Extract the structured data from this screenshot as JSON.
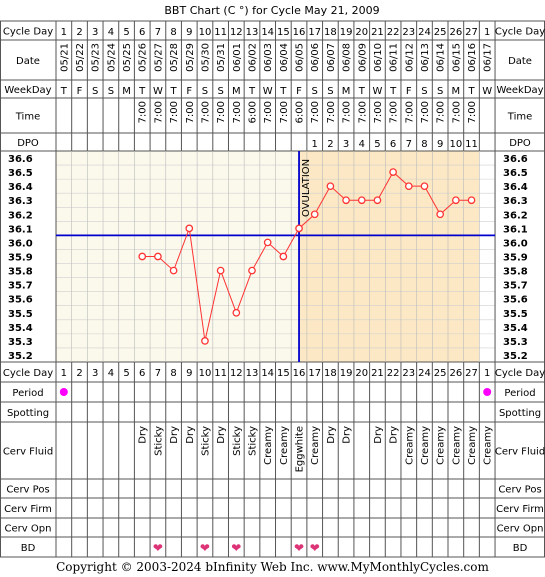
{
  "title": "BBT Chart (C °) for Cycle May 21, 2009",
  "copyright": "Copyright © 2003-2024 bInfinity Web Inc.    www.MyMonthlyCycles.com",
  "row_labels": {
    "cycle_day": "Cycle Day",
    "date": "Date",
    "weekday": "WeekDay",
    "time": "Time",
    "dpo": "DPO",
    "period": "Period",
    "spotting": "Spotting",
    "cerv_fluid": "Cerv Fluid",
    "cerv_pos": "Cerv Pos",
    "cerv_firm": "Cerv Firm",
    "cerv_opn": "Cerv Opn",
    "bd": "BD"
  },
  "colors": {
    "grid_line": "#888888",
    "pre_ovulation_bg": "#fbf8ec",
    "post_ovulation_bg": "#fce8c4",
    "temp_line": "#ff3333",
    "coverline": "#0000cc",
    "ovulation_line": "#0000cc",
    "period_dot": "#ff00ff",
    "bd_heart": "#dd3377"
  },
  "chart_data": {
    "type": "line",
    "title": "BBT Chart (C °) for Cycle May 21, 2009",
    "cycle_days": [
      "1",
      "2",
      "3",
      "4",
      "5",
      "6",
      "7",
      "8",
      "9",
      "10",
      "11",
      "12",
      "13",
      "14",
      "15",
      "16",
      "17",
      "18",
      "19",
      "20",
      "21",
      "22",
      "23",
      "24",
      "25",
      "26",
      "27",
      "1"
    ],
    "dates": [
      "05/21",
      "05/22",
      "05/23",
      "05/24",
      "05/25",
      "05/26",
      "05/27",
      "05/28",
      "05/29",
      "05/30",
      "05/31",
      "06/01",
      "06/02",
      "06/03",
      "06/04",
      "06/05",
      "06/06",
      "06/07",
      "06/08",
      "06/09",
      "06/10",
      "06/11",
      "06/12",
      "06/13",
      "06/14",
      "06/15",
      "06/16",
      "06/17"
    ],
    "weekdays": [
      "T",
      "F",
      "S",
      "S",
      "M",
      "T",
      "W",
      "T",
      "F",
      "S",
      "S",
      "M",
      "T",
      "W",
      "T",
      "F",
      "S",
      "S",
      "M",
      "T",
      "W",
      "T",
      "F",
      "S",
      "S",
      "M",
      "T",
      "W"
    ],
    "times": [
      "",
      "",
      "",
      "",
      "",
      "7:00",
      "7:00",
      "7:00",
      "7:00",
      "7:00",
      "7:00",
      "7:00",
      "6:00",
      "7:00",
      "7:00",
      "6:00",
      "7:00",
      "7:00",
      "7:00",
      "7:00",
      "7:00",
      "7:00",
      "7:00",
      "7:00",
      "7:00",
      "7:00",
      "7:00",
      ""
    ],
    "dpo": [
      "",
      "",
      "",
      "",
      "",
      "",
      "",
      "",
      "",
      "",
      "",
      "",
      "",
      "",
      "",
      "",
      "1",
      "2",
      "3",
      "4",
      "5",
      "6",
      "7",
      "8",
      "9",
      "10",
      "11",
      ""
    ],
    "temperatures": [
      null,
      null,
      null,
      null,
      null,
      35.9,
      35.9,
      35.8,
      36.1,
      35.3,
      35.8,
      35.5,
      35.8,
      36.0,
      35.9,
      36.1,
      36.2,
      36.4,
      36.3,
      36.3,
      36.3,
      36.5,
      36.4,
      36.4,
      36.2,
      36.3,
      36.3,
      null
    ],
    "y_ticks": [
      "36.6",
      "36.5",
      "36.4",
      "36.3",
      "36.2",
      "36.1",
      "36.0",
      "35.9",
      "35.8",
      "35.7",
      "35.6",
      "35.5",
      "35.4",
      "35.3",
      "35.2"
    ],
    "ylim": [
      35.2,
      36.6
    ],
    "coverline": 36.05,
    "ovulation_day": 16,
    "ovulation_label": "OVULATION",
    "period": [
      true,
      false,
      false,
      false,
      false,
      false,
      false,
      false,
      false,
      false,
      false,
      false,
      false,
      false,
      false,
      false,
      false,
      false,
      false,
      false,
      false,
      false,
      false,
      false,
      false,
      false,
      false,
      true
    ],
    "cerv_fluid": [
      "",
      "",
      "",
      "",
      "",
      "Dry",
      "Sticky",
      "Dry",
      "Dry",
      "Sticky",
      "Dry",
      "Sticky",
      "Sticky",
      "Creamy",
      "Creamy",
      "Eggwhite",
      "Creamy",
      "Dry",
      "Dry",
      "",
      "Dry",
      "Dry",
      "Creamy",
      "Creamy",
      "Creamy",
      "Creamy",
      "Creamy",
      "Creamy"
    ],
    "bd": [
      false,
      false,
      false,
      false,
      false,
      false,
      true,
      false,
      false,
      true,
      false,
      true,
      false,
      false,
      false,
      true,
      true,
      false,
      false,
      false,
      false,
      false,
      false,
      false,
      false,
      false,
      false,
      false
    ]
  }
}
